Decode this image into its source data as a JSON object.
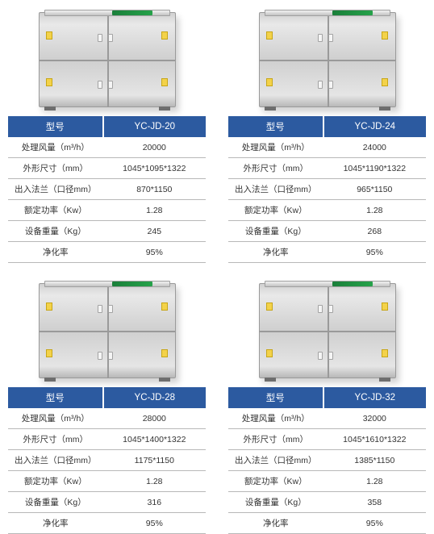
{
  "labels": {
    "model": "型号",
    "airflow": "处理风量（m³/h）",
    "dimensions": "外形尺寸（mm）",
    "flange": "出入法兰（口径mm）",
    "power": "额定功率（Kw）",
    "weight": "设备重量（Kg）",
    "efficiency": "净化率"
  },
  "products": [
    {
      "model": "YC-JD-20",
      "airflow": "20000",
      "dimensions": "1045*1095*1322",
      "flange": "870*1150",
      "power": "1.28",
      "weight": "245",
      "efficiency": "95%"
    },
    {
      "model": "YC-JD-24",
      "airflow": "24000",
      "dimensions": "1045*1190*1322",
      "flange": "965*1150",
      "power": "1.28",
      "weight": "268",
      "efficiency": "95%"
    },
    {
      "model": "YC-JD-28",
      "airflow": "28000",
      "dimensions": "1045*1400*1322",
      "flange": "1175*1150",
      "power": "1.28",
      "weight": "316",
      "efficiency": "95%"
    },
    {
      "model": "YC-JD-32",
      "airflow": "32000",
      "dimensions": "1045*1610*1322",
      "flange": "1385*1150",
      "power": "1.28",
      "weight": "358",
      "efficiency": "95%"
    }
  ],
  "colors": {
    "header_bg": "#2c5aa0",
    "header_text": "#ffffff",
    "row_border": "#b8b8b8",
    "cell_text": "#333333"
  }
}
